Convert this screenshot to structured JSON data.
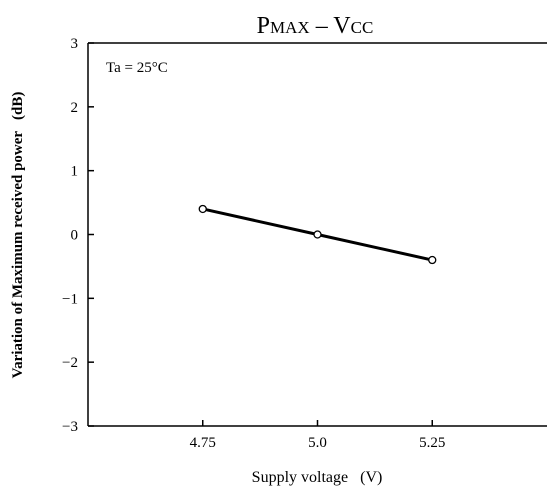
{
  "chart_data": {
    "type": "line",
    "title": {
      "main": "P",
      "main_sub": "MAX",
      "sep": " – ",
      "rhs": "V",
      "rhs_sub": "CC"
    },
    "xlabel": "Supply voltage   (V)",
    "ylabel": "Variation of Maximum received power   (dB)",
    "annotation": "Ta = 25°C",
    "x": [
      4.75,
      5.0,
      5.25
    ],
    "x_tick_labels": [
      "4.75",
      "5.0",
      "5.25"
    ],
    "xlim": [
      4.5,
      5.5
    ],
    "ylim": [
      -3,
      3
    ],
    "y_ticks": [
      3,
      2,
      1,
      0,
      -1,
      -2,
      -3
    ],
    "y_tick_labels": [
      "3",
      "2",
      "1",
      "0",
      "−1",
      "−2",
      "−3"
    ],
    "series": [
      {
        "values": [
          0.4,
          0.0,
          -0.4
        ]
      }
    ],
    "grid": false,
    "colors": {
      "line": "#000000",
      "marker_fill": "#ffffff",
      "axes": "#000000"
    }
  }
}
